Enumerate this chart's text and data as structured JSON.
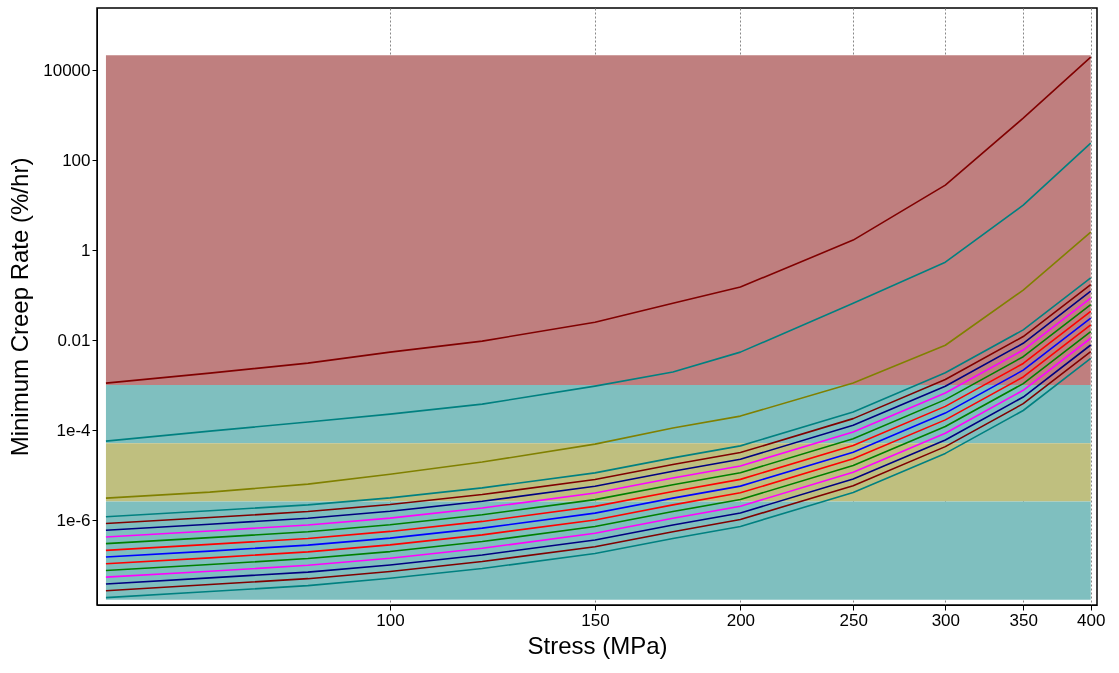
{
  "chart_data": {
    "type": "line",
    "xlabel": "Stress (MPa)",
    "ylabel": "Minimum Creep Rate (%/hr)",
    "log": "xy",
    "grid": "x",
    "xlim": [
      56,
      405
    ],
    "ylim": [
      1.3e-08,
      240000
    ],
    "xticks": [
      100,
      150,
      200,
      250,
      300,
      350,
      400
    ],
    "yticks": [
      {
        "value": 1e-06,
        "label": "1e-6"
      },
      {
        "value": 0.0001,
        "label": "1e-4"
      },
      0.01,
      1,
      100,
      10000
    ],
    "x": [
      57,
      70,
      85,
      100,
      120,
      150,
      175,
      200,
      250,
      300,
      350,
      400
    ],
    "bands": [
      {
        "axis": "y",
        "from": 0.001,
        "to": 21500,
        "color": "#bf7f7f"
      },
      {
        "axis": "y",
        "from": 5.1e-05,
        "to": 0.001,
        "color": "#7fbfbf"
      },
      {
        "axis": "y",
        "from": 2.6e-06,
        "to": 5.1e-05,
        "color": "#bfbf7f"
      },
      {
        "axis": "y",
        "from": 1.7e-08,
        "to": 2.6e-06,
        "color": "#7fbfbf"
      }
    ],
    "series": [
      {
        "color": "#800000",
        "values": [
          0.00111,
          0.00185,
          0.00308,
          0.00541,
          0.0095,
          0.025,
          0.066,
          0.151,
          1.67,
          27.8,
          858,
          19400
        ]
      },
      {
        "color": "#008080",
        "values": [
          5.7e-05,
          9.5e-05,
          0.000151,
          0.000227,
          0.000378,
          0.00095,
          0.00195,
          0.00541,
          0.066,
          0.54,
          10,
          239
        ]
      },
      {
        "color": "#808000",
        "values": [
          3.08e-06,
          4.19e-06,
          6.3e-06,
          1.05e-05,
          1.95e-05,
          4.89e-05,
          0.000111,
          0.000205,
          0.00111,
          0.0077,
          0.129,
          2.51
        ]
      },
      {
        "color": "#008080",
        "values": [
          1.19e-06,
          1.61e-06,
          2.18e-06,
          3.12e-06,
          5.21e-06,
          1.12e-05,
          2.42e-05,
          4.47e-05,
          0.000254,
          0.00188,
          0.0169,
          0.242
        ]
      },
      {
        "color": "#800000",
        "values": [
          8.4e-07,
          1.14e-06,
          1.55e-06,
          2.22e-06,
          3.7e-06,
          7.97e-06,
          1.72e-05,
          3.17e-05,
          0.00018,
          0.00133,
          0.012,
          0.172
        ]
      },
      {
        "color": "#000080",
        "values": [
          5.96e-07,
          8.1e-07,
          1.1e-06,
          1.57e-06,
          2.62e-06,
          5.65e-06,
          1.22e-05,
          2.25e-05,
          0.000128,
          0.000944,
          0.00849,
          0.122
        ]
      },
      {
        "color": "#ff00ff",
        "values": [
          4.23e-07,
          5.74e-07,
          7.78e-07,
          1.11e-06,
          1.86e-06,
          4e-06,
          8.62e-06,
          1.6e-05,
          9.07e-05,
          0.000669,
          0.00602,
          0.0862
        ]
      },
      {
        "color": "#008000",
        "values": [
          3e-07,
          4.08e-07,
          5.53e-07,
          7.92e-07,
          1.32e-06,
          2.85e-06,
          6.13e-06,
          1.13e-05,
          6.45e-05,
          0.000476,
          0.00428,
          0.0613
        ]
      },
      {
        "color": "#ff0000",
        "values": [
          2.13e-07,
          2.89e-07,
          3.92e-07,
          5.61e-07,
          9.36e-07,
          2.02e-06,
          4.34e-06,
          8.04e-06,
          4.57e-05,
          0.000337,
          0.00303,
          0.0434
        ]
      },
      {
        "color": "#0000ff",
        "values": [
          1.51e-07,
          2.05e-07,
          2.78e-07,
          3.98e-07,
          6.64e-07,
          1.43e-06,
          3.08e-06,
          5.7e-06,
          3.24e-05,
          0.000239,
          0.00215,
          0.0308
        ]
      },
      {
        "color": "#ff0000",
        "values": [
          1.07e-07,
          1.45e-07,
          1.97e-07,
          2.82e-07,
          4.71e-07,
          1.01e-06,
          2.18e-06,
          4.04e-06,
          2.3e-05,
          0.000169,
          0.00152,
          0.0218
        ]
      },
      {
        "color": "#008000",
        "values": [
          7.6e-08,
          1.03e-07,
          1.4e-07,
          2e-07,
          3.34e-07,
          7.19e-07,
          1.55e-06,
          2.87e-06,
          1.63e-05,
          0.00012,
          0.00108,
          0.0155
        ]
      },
      {
        "color": "#ff00ff",
        "values": [
          5.4e-08,
          7.3e-08,
          9.9e-08,
          1.42e-07,
          2.37e-07,
          5.11e-07,
          1.1e-06,
          2.03e-06,
          1.16e-05,
          8.53e-05,
          0.000768,
          0.011
        ]
      },
      {
        "color": "#000080",
        "values": [
          3.8e-08,
          5.2e-08,
          7e-08,
          1.01e-07,
          1.68e-07,
          3.62e-07,
          7.79e-07,
          1.44e-06,
          8.2e-06,
          6.05e-05,
          0.000544,
          0.00779
        ]
      },
      {
        "color": "#800000",
        "values": [
          2.7e-08,
          3.7e-08,
          5e-08,
          7.2e-08,
          1.2e-07,
          2.57e-07,
          5.54e-07,
          1.03e-06,
          5.83e-06,
          4.3e-05,
          0.000387,
          0.00554
        ]
      },
      {
        "color": "#008080",
        "values": [
          1.9e-08,
          2.6e-08,
          3.5e-08,
          5.1e-08,
          8.4e-08,
          1.82e-07,
          3.91e-07,
          7.24e-07,
          4.11e-06,
          3.04e-05,
          0.000273,
          0.00391
        ]
      }
    ]
  }
}
